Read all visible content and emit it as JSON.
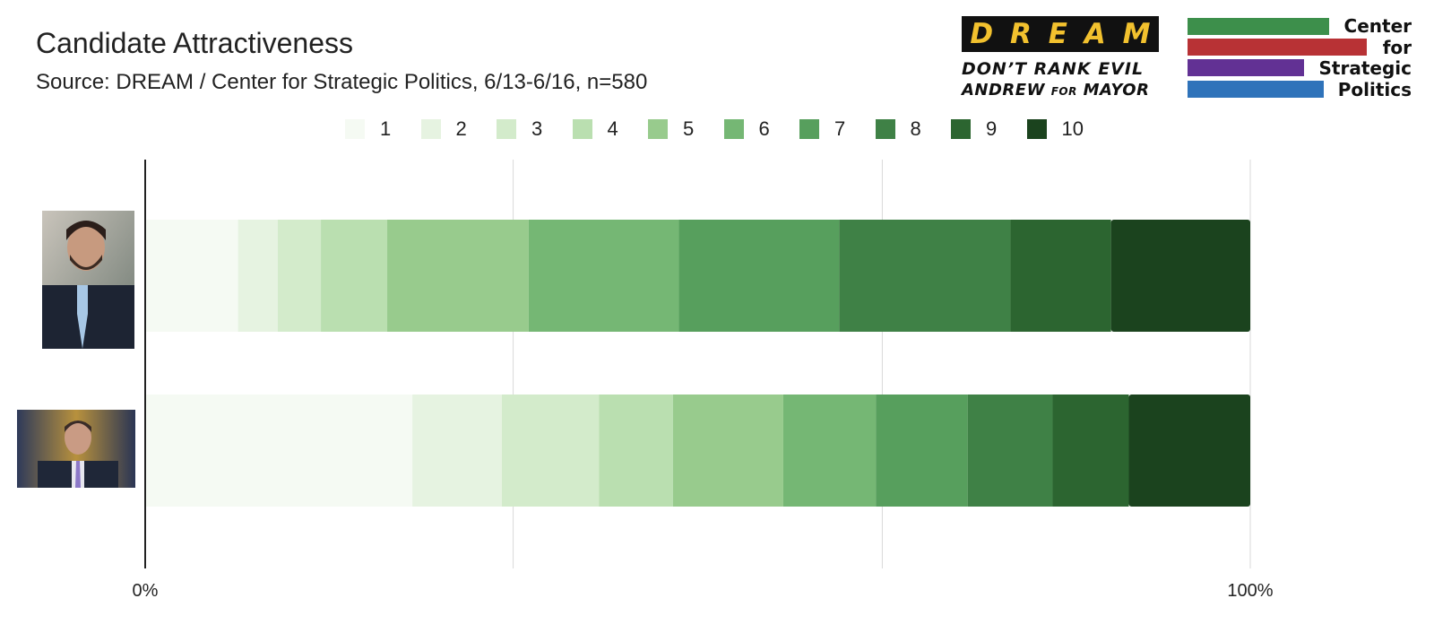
{
  "header": {
    "title": "Candidate Attractiveness",
    "subtitle": "Source: DREAM / Center for Strategic Politics, 6/13-6/16, n=580"
  },
  "logos": {
    "dream": {
      "letters": [
        "D",
        "R",
        "E",
        "A",
        "M"
      ],
      "line1": "DON’T RANK EVIL",
      "line2_a": "ANDREW ",
      "line2_b": "FOR",
      "line2_c": " MAYOR"
    },
    "csp": {
      "words": [
        "Center",
        "for",
        "Strategic",
        "Politics"
      ],
      "colors": [
        "#3d8f4b",
        "#b83235",
        "#623194",
        "#2f73ba"
      ]
    }
  },
  "chart_data": {
    "type": "bar",
    "orientation": "horizontal",
    "stacked": "percent",
    "categories": [
      "Candidate 1 (photo)",
      "Candidate 2 (photo)"
    ],
    "series": [
      {
        "name": "1",
        "color": "#f5faf3",
        "values": [
          8.4,
          24.2
        ]
      },
      {
        "name": "2",
        "color": "#e6f3e1",
        "values": [
          3.6,
          8.1
        ]
      },
      {
        "name": "3",
        "color": "#d3ebcb",
        "values": [
          3.9,
          8.8
        ]
      },
      {
        "name": "4",
        "color": "#badfb0",
        "values": [
          6.0,
          6.7
        ]
      },
      {
        "name": "5",
        "color": "#98cb8d",
        "values": [
          12.8,
          10.0
        ]
      },
      {
        "name": "6",
        "color": "#75b774",
        "values": [
          13.6,
          8.4
        ]
      },
      {
        "name": "7",
        "color": "#579f5d",
        "values": [
          14.5,
          8.3
        ]
      },
      {
        "name": "8",
        "color": "#3f8146",
        "values": [
          15.5,
          7.7
        ]
      },
      {
        "name": "9",
        "color": "#2c6530",
        "values": [
          9.1,
          6.9
        ]
      },
      {
        "name": "10",
        "color": "#1b431e",
        "values": [
          12.6,
          11.0
        ]
      }
    ],
    "xlim": [
      0,
      100
    ],
    "x_ticks": [
      "0%",
      "100%"
    ],
    "gridlines": [
      0,
      33.3,
      66.7,
      100
    ],
    "legend": "top-center"
  }
}
